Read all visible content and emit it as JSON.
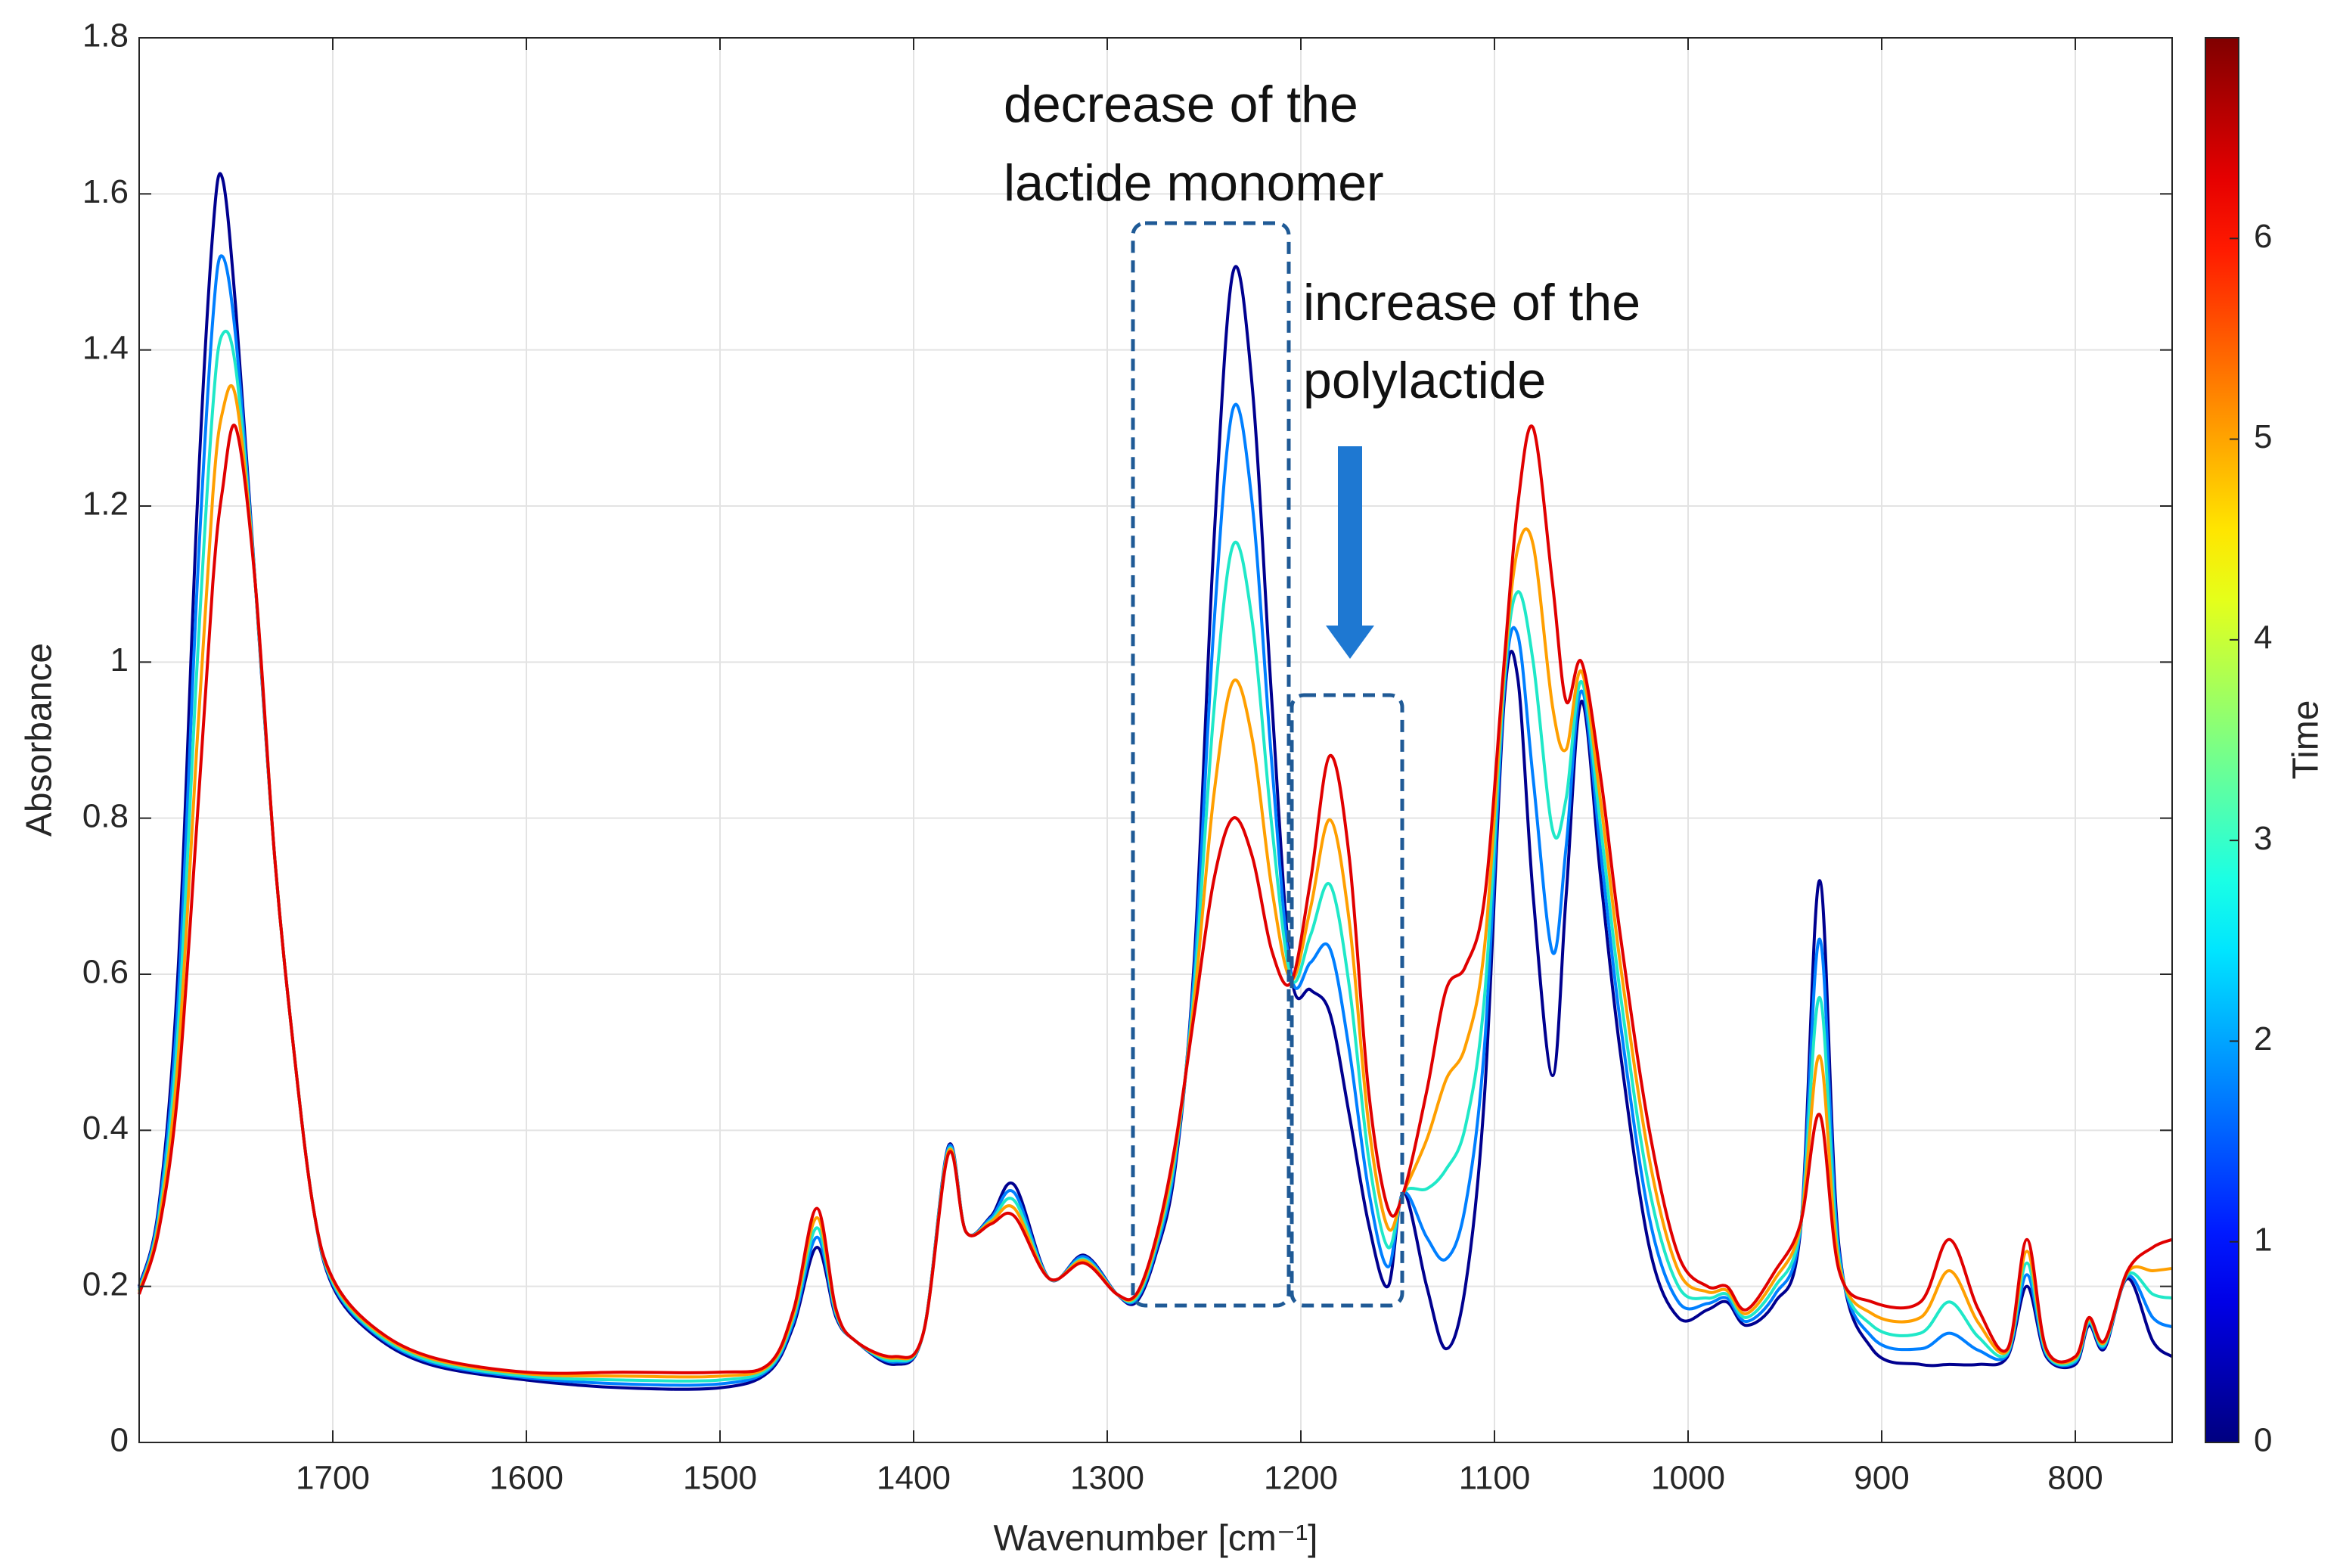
{
  "chart_data": {
    "type": "line",
    "xlabel": "Wavenumber [cm⁻¹]",
    "ylabel": "Absorbance",
    "annotations": [
      "decrease of the",
      "lactide monomer",
      "increase of the",
      "polylactide"
    ],
    "x": [
      1800,
      1790,
      1780,
      1770,
      1762,
      1757,
      1750,
      1740,
      1730,
      1720,
      1710,
      1700,
      1680,
      1650,
      1600,
      1550,
      1500,
      1475,
      1462,
      1450,
      1440,
      1430,
      1410,
      1395,
      1382,
      1373,
      1360,
      1348,
      1330,
      1312,
      1295,
      1285,
      1275,
      1265,
      1255,
      1245,
      1235,
      1225,
      1215,
      1205,
      1195,
      1185,
      1175,
      1165,
      1155,
      1147,
      1135,
      1125,
      1115,
      1105,
      1095,
      1088,
      1080,
      1070,
      1063,
      1055,
      1045,
      1035,
      1020,
      1005,
      990,
      980,
      970,
      955,
      942,
      932,
      922,
      905,
      880,
      865,
      850,
      835,
      825,
      815,
      800,
      793,
      785,
      773,
      760,
      750
    ],
    "series": [
      {
        "color": "#00008f",
        "values": [
          0.2,
          0.3,
          0.6,
          1.2,
          1.55,
          1.62,
          1.45,
          1.1,
          0.75,
          0.5,
          0.3,
          0.2,
          0.14,
          0.1,
          0.08,
          0.07,
          0.07,
          0.09,
          0.15,
          0.25,
          0.16,
          0.13,
          0.1,
          0.14,
          0.38,
          0.27,
          0.29,
          0.33,
          0.21,
          0.24,
          0.19,
          0.18,
          0.24,
          0.35,
          0.62,
          1.15,
          1.5,
          1.35,
          0.95,
          0.6,
          0.58,
          0.55,
          0.42,
          0.28,
          0.2,
          0.32,
          0.2,
          0.12,
          0.2,
          0.45,
          0.95,
          0.98,
          0.7,
          0.47,
          0.7,
          0.95,
          0.72,
          0.5,
          0.25,
          0.16,
          0.17,
          0.18,
          0.15,
          0.18,
          0.27,
          0.72,
          0.25,
          0.12,
          0.1,
          0.1,
          0.1,
          0.11,
          0.2,
          0.11,
          0.1,
          0.15,
          0.12,
          0.21,
          0.13,
          0.11
        ]
      },
      {
        "color": "#007fff",
        "values": [
          0.198,
          0.293,
          0.563,
          1.1,
          1.438,
          1.52,
          1.413,
          1.1,
          0.75,
          0.5,
          0.3,
          0.203,
          0.143,
          0.103,
          0.083,
          0.075,
          0.075,
          0.093,
          0.155,
          0.263,
          0.163,
          0.13,
          0.103,
          0.14,
          0.378,
          0.27,
          0.288,
          0.32,
          0.21,
          0.238,
          0.19,
          0.183,
          0.245,
          0.358,
          0.603,
          1.043,
          1.325,
          1.2,
          0.87,
          0.598,
          0.615,
          0.633,
          0.503,
          0.323,
          0.225,
          0.32,
          0.263,
          0.235,
          0.303,
          0.513,
          0.963,
          1.035,
          0.85,
          0.628,
          0.763,
          0.963,
          0.753,
          0.538,
          0.288,
          0.18,
          0.178,
          0.185,
          0.155,
          0.19,
          0.273,
          0.645,
          0.243,
          0.135,
          0.12,
          0.14,
          0.118,
          0.113,
          0.215,
          0.113,
          0.103,
          0.153,
          0.123,
          0.213,
          0.16,
          0.148
        ]
      },
      {
        "color": "#1fe8c8",
        "values": [
          0.195,
          0.285,
          0.525,
          1.0,
          1.325,
          1.42,
          1.375,
          1.1,
          0.75,
          0.5,
          0.3,
          0.205,
          0.145,
          0.105,
          0.085,
          0.08,
          0.08,
          0.095,
          0.16,
          0.275,
          0.165,
          0.13,
          0.105,
          0.14,
          0.375,
          0.27,
          0.285,
          0.31,
          0.21,
          0.235,
          0.19,
          0.185,
          0.25,
          0.365,
          0.585,
          0.935,
          1.15,
          1.05,
          0.79,
          0.595,
          0.65,
          0.715,
          0.585,
          0.365,
          0.25,
          0.32,
          0.325,
          0.35,
          0.405,
          0.575,
          0.975,
          1.09,
          1.0,
          0.785,
          0.825,
          0.975,
          0.785,
          0.575,
          0.325,
          0.2,
          0.185,
          0.19,
          0.16,
          0.2,
          0.275,
          0.57,
          0.235,
          0.15,
          0.14,
          0.18,
          0.135,
          0.115,
          0.23,
          0.115,
          0.105,
          0.155,
          0.125,
          0.215,
          0.19,
          0.185
        ]
      },
      {
        "color": "#ff9f00",
        "values": [
          0.193,
          0.278,
          0.488,
          0.9,
          1.213,
          1.32,
          1.338,
          1.1,
          0.75,
          0.5,
          0.3,
          0.208,
          0.148,
          0.108,
          0.088,
          0.085,
          0.085,
          0.098,
          0.165,
          0.288,
          0.168,
          0.13,
          0.108,
          0.14,
          0.373,
          0.27,
          0.283,
          0.3,
          0.21,
          0.233,
          0.19,
          0.188,
          0.255,
          0.373,
          0.568,
          0.828,
          0.975,
          0.9,
          0.71,
          0.593,
          0.685,
          0.798,
          0.668,
          0.408,
          0.275,
          0.32,
          0.388,
          0.465,
          0.508,
          0.638,
          0.988,
          1.145,
          1.15,
          0.943,
          0.888,
          0.988,
          0.818,
          0.613,
          0.363,
          0.22,
          0.193,
          0.195,
          0.165,
          0.21,
          0.278,
          0.495,
          0.228,
          0.165,
          0.16,
          0.22,
          0.153,
          0.118,
          0.245,
          0.118,
          0.108,
          0.158,
          0.128,
          0.218,
          0.22,
          0.223
        ]
      },
      {
        "color": "#e00000",
        "values": [
          0.19,
          0.27,
          0.45,
          0.8,
          1.1,
          1.22,
          1.3,
          1.1,
          0.75,
          0.5,
          0.3,
          0.21,
          0.15,
          0.11,
          0.09,
          0.09,
          0.09,
          0.1,
          0.17,
          0.3,
          0.17,
          0.13,
          0.11,
          0.14,
          0.37,
          0.27,
          0.28,
          0.29,
          0.21,
          0.23,
          0.19,
          0.19,
          0.26,
          0.38,
          0.55,
          0.72,
          0.8,
          0.75,
          0.63,
          0.59,
          0.72,
          0.88,
          0.75,
          0.45,
          0.3,
          0.32,
          0.45,
          0.58,
          0.61,
          0.7,
          1.0,
          1.2,
          1.3,
          1.1,
          0.95,
          1.0,
          0.85,
          0.65,
          0.4,
          0.24,
          0.2,
          0.2,
          0.17,
          0.22,
          0.28,
          0.42,
          0.22,
          0.18,
          0.18,
          0.26,
          0.17,
          0.12,
          0.26,
          0.12,
          0.11,
          0.16,
          0.13,
          0.22,
          0.25,
          0.26
        ]
      }
    ],
    "xlim": [
      1800,
      750
    ],
    "xticks": [
      1700,
      1600,
      1500,
      1400,
      1300,
      1200,
      1100,
      1000,
      900,
      800
    ],
    "ylim": [
      0,
      1.8
    ],
    "yticks": [
      0,
      0.2,
      0.4,
      0.6,
      0.8,
      1,
      1.2,
      1.4,
      1.6,
      1.8
    ],
    "grid": true,
    "colorbar": {
      "label": "Time",
      "colormap": "jet",
      "lim": [
        0,
        7
      ],
      "ticks": [
        0,
        1,
        2,
        3,
        4,
        5,
        6
      ]
    }
  }
}
